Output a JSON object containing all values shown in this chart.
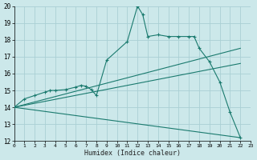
{
  "xlabel": "Humidex (Indice chaleur)",
  "xlim": [
    0,
    23
  ],
  "ylim": [
    12,
    20
  ],
  "yticks": [
    12,
    13,
    14,
    15,
    16,
    17,
    18,
    19,
    20
  ],
  "xticks": [
    0,
    1,
    2,
    3,
    4,
    5,
    6,
    7,
    8,
    9,
    10,
    11,
    12,
    13,
    14,
    15,
    16,
    17,
    18,
    19,
    20,
    21,
    22,
    23
  ],
  "bg_color": "#cce8ea",
  "grid_color": "#aad0d4",
  "line_color": "#1a7a6e",
  "curve_x": [
    0,
    1,
    2,
    3,
    3.5,
    4,
    5,
    6,
    6.5,
    7,
    7.5,
    8,
    9,
    11,
    12,
    12.5,
    13,
    14,
    15,
    16,
    17,
    17.5,
    18,
    19,
    20,
    21,
    22
  ],
  "curve_y": [
    14.0,
    14.5,
    14.7,
    14.9,
    15.0,
    15.0,
    15.05,
    15.2,
    15.3,
    15.25,
    15.05,
    14.7,
    16.8,
    17.9,
    20.0,
    19.5,
    18.2,
    18.3,
    18.2,
    18.2,
    18.2,
    18.2,
    17.5,
    16.7,
    15.5,
    13.7,
    12.2
  ],
  "line1_x": [
    0,
    22
  ],
  "line1_y": [
    14.0,
    17.5
  ],
  "line2_x": [
    0,
    22
  ],
  "line2_y": [
    14.0,
    16.6
  ],
  "line3_x": [
    0,
    22
  ],
  "line3_y": [
    14.0,
    12.2
  ]
}
